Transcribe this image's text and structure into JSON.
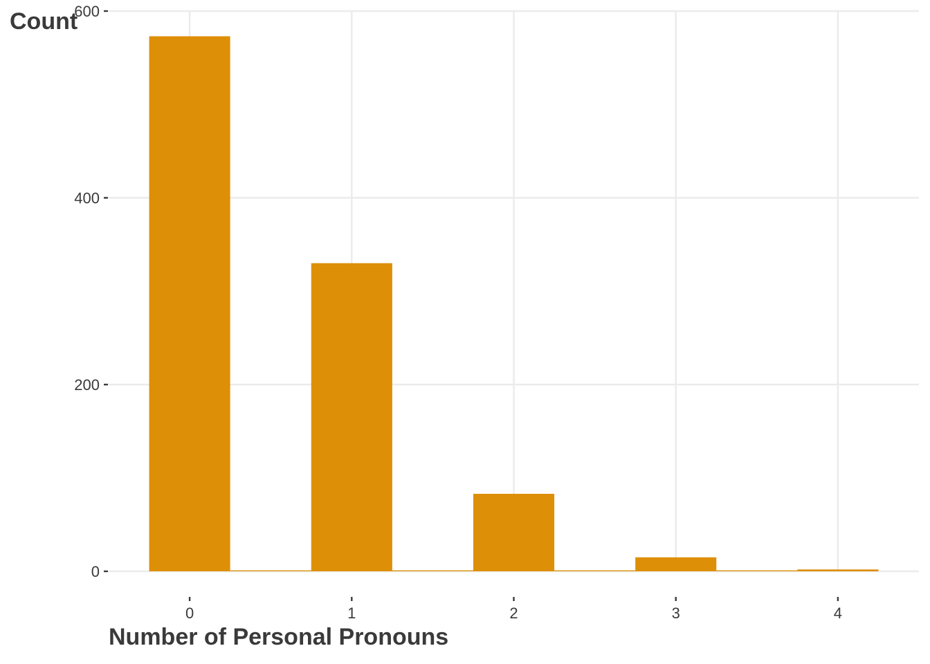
{
  "chart_data": {
    "type": "bar",
    "x_breaks": [
      0,
      1,
      2,
      3,
      4
    ],
    "bins": [
      {
        "x_start": -0.25,
        "x_end": 0.25,
        "count": 573
      },
      {
        "x_start": 0.25,
        "x_end": 0.75,
        "count": 1
      },
      {
        "x_start": 0.75,
        "x_end": 1.25,
        "count": 330
      },
      {
        "x_start": 1.25,
        "x_end": 1.75,
        "count": 1
      },
      {
        "x_start": 1.75,
        "x_end": 2.25,
        "count": 83
      },
      {
        "x_start": 2.25,
        "x_end": 2.75,
        "count": 1
      },
      {
        "x_start": 2.75,
        "x_end": 3.25,
        "count": 15
      },
      {
        "x_start": 3.25,
        "x_end": 3.75,
        "count": 1
      },
      {
        "x_start": 3.75,
        "x_end": 4.25,
        "count": 2
      }
    ],
    "xlabel": "Number of Personal Pronouns",
    "ylabel": "Count",
    "x_ticks": [
      "0",
      "1",
      "2",
      "3",
      "4"
    ],
    "y_ticks": [
      "0",
      "200",
      "400",
      "600"
    ],
    "y_tick_values": [
      0,
      200,
      400,
      600
    ],
    "xlim": [
      -0.5,
      4.5
    ],
    "ylim": [
      0,
      600
    ],
    "grid": true,
    "bar_color": "#DE8F08",
    "grid_color": "#EBEBEB",
    "text_color": "#3A3A3A"
  }
}
